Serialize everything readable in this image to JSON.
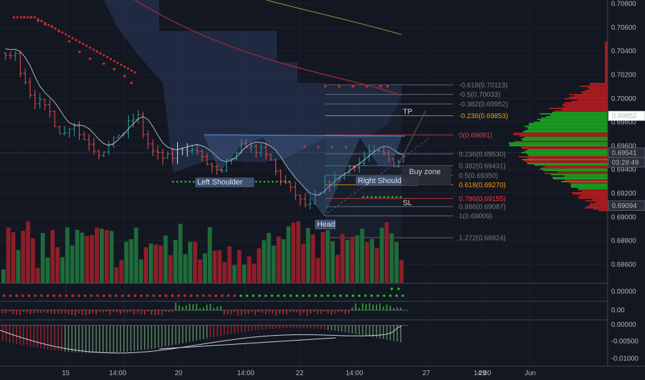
{
  "chart_data": {
    "type": "candlestick",
    "y_range": [
      0.6838,
      0.7088
    ],
    "price_axis_ticks": [
      0.708,
      0.706,
      0.704,
      0.702,
      0.7,
      0.698,
      0.696,
      0.694,
      0.692,
      0.69,
      0.688,
      0.686
    ],
    "price_axis_labels": [
      "0.70800",
      "0.70600",
      "0.70400",
      "0.70200",
      "0.70000",
      "0.69800",
      "0.69600",
      "0.69400",
      "0.69200",
      "0.69000",
      "0.68800",
      "0.68600"
    ],
    "price_badges": [
      {
        "text": "0.69852",
        "value": 0.69852,
        "style": "white"
      },
      {
        "text": "0.69541",
        "value": 0.69541,
        "style": "dark"
      },
      {
        "text": "03:28:49",
        "value": 0.6946,
        "style": "dark"
      },
      {
        "text": "0.69094",
        "value": 0.69094,
        "style": "dark"
      }
    ],
    "fib_levels": [
      {
        "label": "-0.618(0.70113)",
        "value": 0.70113,
        "color": "#787b86"
      },
      {
        "label": "-0.5(0.70033)",
        "value": 0.70033,
        "color": "#787b86"
      },
      {
        "label": "-0.382(0.69952)",
        "value": 0.69952,
        "color": "#787b86"
      },
      {
        "label": "-0.236(0.69853)",
        "value": 0.69853,
        "color": "#ff9800"
      },
      {
        "label": "0(0.69691)",
        "value": 0.69691,
        "color": "#f23645"
      },
      {
        "label": "0.236(0.69530)",
        "value": 0.6953,
        "color": "#787b86"
      },
      {
        "label": "0.382(0.69431)",
        "value": 0.69431,
        "color": "#787b86"
      },
      {
        "label": "0.5(0.69350)",
        "value": 0.6935,
        "color": "#787b86"
      },
      {
        "label": "0.618(0.69270)",
        "value": 0.6927,
        "color": "#ff9800"
      },
      {
        "label": "0.786(0.69155)",
        "value": 0.69155,
        "color": "#f23645"
      },
      {
        "label": "0.886(0.69087)",
        "value": 0.69087,
        "color": "#787b86"
      },
      {
        "label": "1(0.69009)",
        "value": 0.69009,
        "color": "#787b86"
      },
      {
        "label": "1.272(0.68824)",
        "value": 0.68824,
        "color": "#787b86"
      }
    ],
    "annotations": {
      "left_shoulder": "Left Shoulder",
      "head": "Head",
      "right_shoulder": "Right Shoulder",
      "buy_zone": "Buy zone",
      "tp": "TP",
      "sl": "SL"
    },
    "x_axis_labels": [
      "15",
      "14:00",
      "20",
      "14:00",
      "22",
      "14:00",
      "27",
      "29",
      "14:00",
      "Jun"
    ],
    "indicator_panes": [
      {
        "name": "dots",
        "ticks": [
          "0.00000"
        ]
      },
      {
        "name": "histogram",
        "ticks": [
          "0.00"
        ]
      },
      {
        "name": "oscillator",
        "ticks": [
          "0.00000",
          "-0.00500",
          "-0.01000"
        ]
      }
    ],
    "colors": {
      "background": "#131722",
      "bull": "#26a69a",
      "bear": "#ef5350",
      "cloud": "#2a3a5c",
      "text": "#b2b5be"
    }
  }
}
